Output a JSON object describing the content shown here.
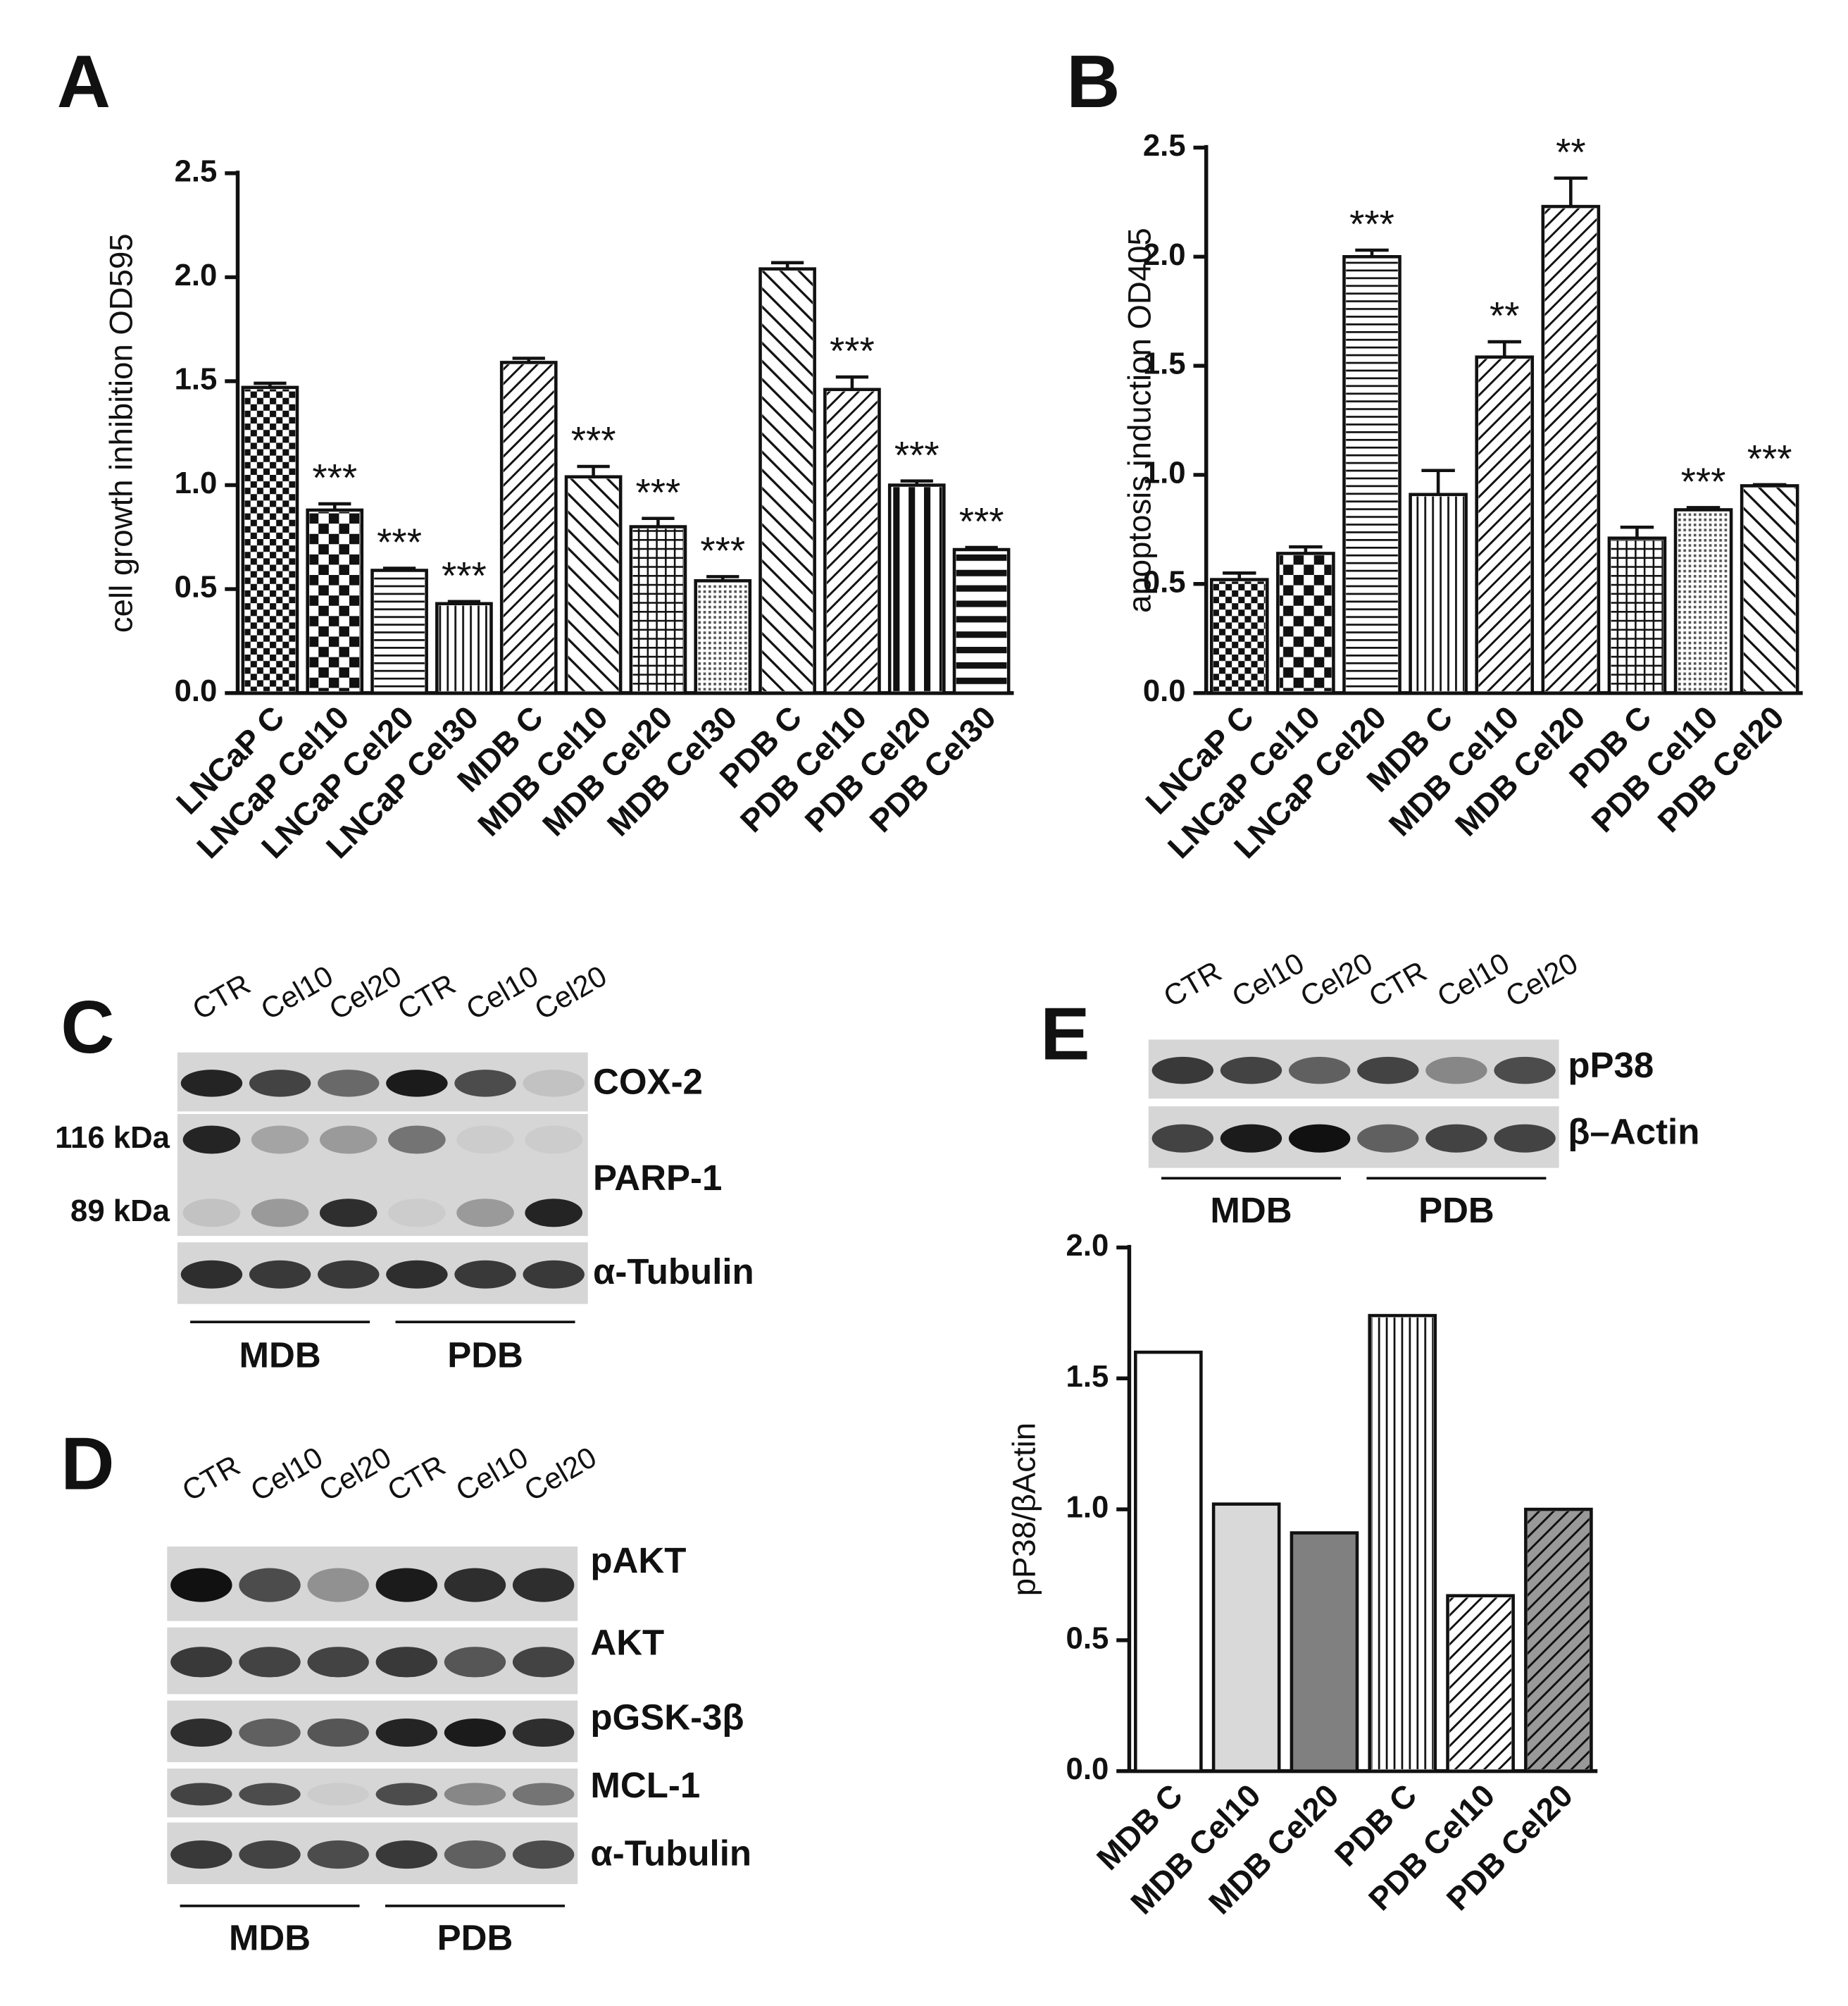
{
  "chart_data": [
    {
      "type": "bar",
      "panel": "A",
      "y_label": "cell growth inhibition OD595",
      "categories": [
        "LNCaP C",
        "LNCaP Cel10",
        "LNCaP Cel20",
        "LNCaP Cel30",
        "MDB C",
        "MDB Cel10",
        "MDB Cel20",
        "MDB Cel30",
        "PDB C",
        "PDB Cel10",
        "PDB Cel20",
        "PDB Cel30"
      ],
      "values": [
        1.47,
        0.88,
        0.59,
        0.43,
        1.59,
        1.04,
        0.8,
        0.54,
        2.04,
        1.46,
        1.0,
        0.69
      ],
      "errors": [
        0.02,
        0.03,
        0.01,
        0.01,
        0.02,
        0.05,
        0.04,
        0.02,
        0.03,
        0.06,
        0.02,
        0.01
      ],
      "annotations": [
        null,
        "***",
        "***",
        "***",
        null,
        "***",
        "***",
        "***",
        null,
        "***",
        "***",
        "***"
      ],
      "colors": [
        "#ffffff",
        "#ffffff",
        "#ffffff",
        "#ffffff",
        "#ffffff",
        "#ffffff",
        "#ffffff",
        "#ffffff",
        "#ffffff",
        "#ffffff",
        "#ffffff",
        "#ffffff"
      ],
      "patterns": [
        "checker",
        "checker-lg",
        "hlines",
        "vlines",
        "diag",
        "diag-back",
        "grid",
        "dots",
        "diag-back",
        "diag",
        "vlines-thick",
        "hlines-thick"
      ],
      "ylim": [
        0,
        2.5
      ],
      "yticks": [
        {
          "value": 0,
          "label": "0.0"
        },
        0.5,
        {
          "value": 1,
          "label": "1.0"
        },
        1.5,
        {
          "value": 2,
          "label": "2.0"
        },
        2.5
      ]
    },
    {
      "type": "bar",
      "panel": "B",
      "y_label": "apoptosis induction OD405",
      "categories": [
        "LNCaP C",
        "LNCaP Cel10",
        "LNCaP Cel20",
        "MDB C",
        "MDB Cel10",
        "MDB Cel20",
        "PDB C",
        "PDB Cel10",
        "PDB Cel20"
      ],
      "values": [
        0.52,
        0.64,
        2.0,
        0.91,
        1.54,
        2.23,
        0.71,
        0.84,
        0.95
      ],
      "errors": [
        0.03,
        0.03,
        0.03,
        0.11,
        0.07,
        0.13,
        0.05,
        0.01,
        0.005
      ],
      "annotations": [
        null,
        null,
        "***",
        null,
        "**",
        "**",
        null,
        "***",
        "***"
      ],
      "colors": [
        "#ffffff",
        "#ffffff",
        "#ffffff",
        "#ffffff",
        "#ffffff",
        "#ffffff",
        "#ffffff",
        "#ffffff",
        "#ffffff"
      ],
      "patterns": [
        "checker",
        "checker-lg",
        "hlines",
        "vlines",
        "diag",
        "diag",
        "grid",
        "dots",
        "diag-back"
      ],
      "ylim": [
        0,
        2.5
      ],
      "yticks": [
        {
          "value": 0,
          "label": "0.0"
        },
        0.5,
        {
          "value": 1,
          "label": "1.0"
        },
        1.5,
        {
          "value": 2,
          "label": "2.0"
        },
        2.5
      ]
    },
    {
      "type": "bar",
      "y_label": "pP38/βActin",
      "categories": [
        "MDB C",
        "MDB Cel10",
        "MDB Cel20",
        "PDB C",
        "PDB Cel10",
        "PDB Cel20"
      ],
      "values": [
        1.6,
        1.02,
        0.91,
        1.74,
        0.67,
        1.0
      ],
      "colors": [
        "#ffffff",
        "#d9d9d9",
        "#808080",
        "#ffffff",
        "#ffffff",
        "#999999"
      ],
      "patterns": [
        null,
        null,
        null,
        "vlines",
        "diag",
        "diag"
      ],
      "ylim": [
        0,
        2
      ],
      "yticks": [
        {
          "value": 0,
          "label": "0.0"
        },
        0.5,
        {
          "value": 1,
          "label": "1.0"
        },
        1.5,
        {
          "value": 2,
          "label": "2.0"
        }
      ]
    }
  ],
  "blots": [
    {
      "panel": "C",
      "lanes": [
        "CTR",
        "Cel10",
        "Cel20",
        "CTR",
        "Cel10",
        "Cel20"
      ],
      "rows": [
        "COX-2",
        "PARP-1",
        "α-Tubulin"
      ],
      "markers": [
        "116 kDa",
        "89 kDa"
      ],
      "groups": [
        "MDB",
        "PDB"
      ]
    },
    {
      "panel": "D",
      "lanes": [
        "CTR",
        "Cel10",
        "Cel20",
        "CTR",
        "Cel10",
        "Cel20"
      ],
      "rows": [
        "pAKT",
        "AKT",
        "pGSK-3β",
        "MCL-1",
        "α-Tubulin"
      ],
      "groups": [
        "MDB",
        "PDB"
      ]
    },
    {
      "panel": "E",
      "lanes": [
        "CTR",
        "Cel10",
        "Cel20",
        "CTR",
        "Cel10",
        "Cel20"
      ],
      "rows": [
        "pP38",
        "β–Actin"
      ],
      "groups": [
        "MDB",
        "PDB"
      ]
    }
  ]
}
